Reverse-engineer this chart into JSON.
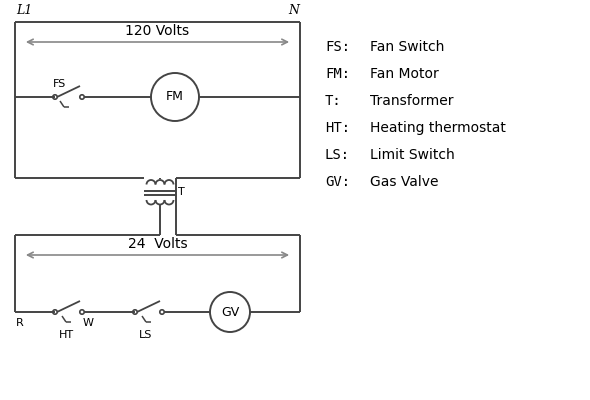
{
  "bg_color": "#ffffff",
  "line_color": "#444444",
  "arrow_color": "#888888",
  "text_color": "#000000",
  "line_width": 1.4,
  "legend_items": [
    [
      "FS:",
      "Fan Switch"
    ],
    [
      "FM:",
      "Fan Motor"
    ],
    [
      "T:",
      "Transformer"
    ],
    [
      "HT:",
      "Heating thermostat"
    ],
    [
      "LS:",
      "Limit Switch"
    ],
    [
      "GV:",
      "Gas Valve"
    ]
  ],
  "label_L1": "L1",
  "label_N": "N",
  "label_120V": "120 Volts",
  "label_24V": "24  Volts",
  "label_T": "T",
  "label_FS": "FS",
  "label_FM": "FM",
  "label_GV": "GV",
  "label_R": "R",
  "label_W": "W",
  "label_HT": "HT",
  "label_LS": "LS"
}
